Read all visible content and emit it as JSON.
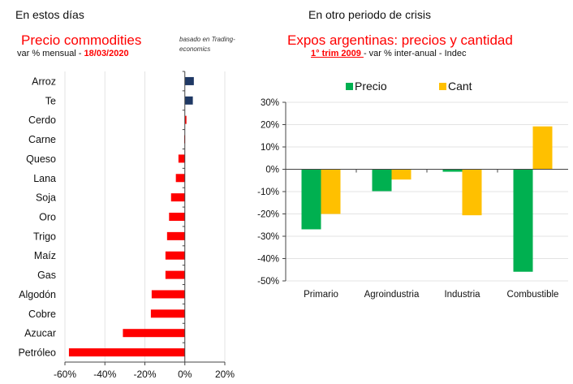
{
  "left": {
    "section_title": "En estos días",
    "chart_title": "Precio commodities",
    "subtitle_prefix": "var % mensual - ",
    "subtitle_date": "18/03/2020",
    "note": "basado en Trading-economics"
  },
  "right": {
    "section_title": "En otro periodo de crisis",
    "chart_title": "Expos argentinas: precios y cantidad",
    "subtitle_highlight": "1° trim 2009 ",
    "subtitle_rest": "- var % inter-anual  - Indec"
  },
  "chart_data": [
    {
      "type": "bar",
      "orientation": "horizontal",
      "title": "Precio commodities",
      "subtitle": "var % mensual - 18/03/2020",
      "categories": [
        "Arroz",
        "Te",
        "Cerdo",
        "Carne",
        "Queso",
        "Lana",
        "Soja",
        "Oro",
        "Trigo",
        "Maíz",
        "Gas",
        "Algodón",
        "Cobre",
        "Azucar",
        "Petróleo"
      ],
      "values": [
        4.5,
        4.0,
        0.8,
        -0.3,
        -3.2,
        -4.5,
        -6.9,
        -7.9,
        -8.9,
        -9.7,
        -9.7,
        -16.6,
        -17.0,
        -31.0,
        -58.0
      ],
      "colors": [
        "#1f3864",
        "#1f3864",
        "#ff0000",
        "#ff0000",
        "#ff0000",
        "#ff0000",
        "#ff0000",
        "#ff0000",
        "#ff0000",
        "#ff0000",
        "#ff0000",
        "#ff0000",
        "#ff0000",
        "#ff0000",
        "#ff0000"
      ],
      "xlim": [
        -60,
        20
      ],
      "xticks": [
        -60,
        -40,
        -20,
        0,
        20
      ],
      "xtick_labels": [
        "-60%",
        "-40%",
        "-20%",
        "0%",
        "20%"
      ],
      "grid": "vertical",
      "xlabel": "",
      "ylabel": ""
    },
    {
      "type": "bar",
      "orientation": "vertical",
      "title": "Expos argentinas: precios y cantidad",
      "subtitle": "1° trim 2009 - var % inter-anual - Indec",
      "categories": [
        "Primario",
        "Agroindustria",
        "Industria",
        "Combustible"
      ],
      "series": [
        {
          "name": "Precio",
          "color": "#00b050",
          "values": [
            -26.9,
            -9.8,
            -1.1,
            -45.9
          ]
        },
        {
          "name": "Cant",
          "color": "#ffc000",
          "values": [
            -20.0,
            -4.6,
            -20.6,
            19.2
          ]
        }
      ],
      "ylim": [
        -50,
        30
      ],
      "yticks": [
        30,
        20,
        10,
        0,
        -10,
        -20,
        -30,
        -40,
        -50
      ],
      "ytick_labels": [
        "30%",
        "20%",
        "10%",
        "0%",
        "-10%",
        "-20%",
        "-30%",
        "-40%",
        "-50%"
      ],
      "legend": "top",
      "grid": "horizontal",
      "xlabel": "",
      "ylabel": ""
    }
  ]
}
